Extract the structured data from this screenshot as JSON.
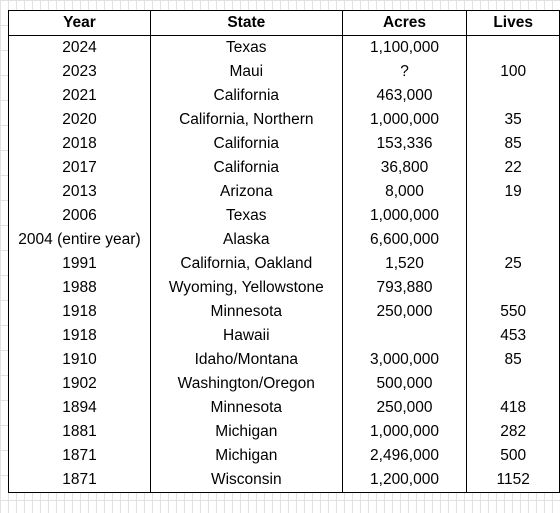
{
  "table": {
    "headers": [
      "Year",
      "State",
      "Acres",
      "Lives"
    ],
    "rows": [
      [
        "2024",
        "Texas",
        "1,100,000",
        ""
      ],
      [
        "2023",
        "Maui",
        "?",
        "100"
      ],
      [
        "2021",
        "California",
        "463,000",
        ""
      ],
      [
        "2020",
        "California, Northern",
        "1,000,000",
        "35"
      ],
      [
        "2018",
        "California",
        "153,336",
        "85"
      ],
      [
        "2017",
        "California",
        "36,800",
        "22"
      ],
      [
        "2013",
        "Arizona",
        "8,000",
        "19"
      ],
      [
        "2006",
        "Texas",
        "1,000,000",
        ""
      ],
      [
        "2004 (entire year)",
        "Alaska",
        "6,600,000",
        ""
      ],
      [
        "1991",
        "California, Oakland",
        "1,520",
        "25"
      ],
      [
        "1988",
        "Wyoming, Yellowstone",
        "793,880",
        ""
      ],
      [
        "1918",
        "Minnesota",
        "250,000",
        "550"
      ],
      [
        "1918",
        "Hawaii",
        "",
        "453"
      ],
      [
        "1910",
        "Idaho/Montana",
        "3,000,000",
        "85"
      ],
      [
        "1902",
        "Washington/Oregon",
        "500,000",
        ""
      ],
      [
        "1894",
        "Minnesota",
        "250,000",
        "418"
      ],
      [
        "1881",
        "Michigan",
        "1,000,000",
        "282"
      ],
      [
        "1871",
        "Michigan",
        "2,496,000",
        "500"
      ],
      [
        "1871",
        "Wisconsin",
        "1,200,000",
        "1152"
      ]
    ]
  }
}
